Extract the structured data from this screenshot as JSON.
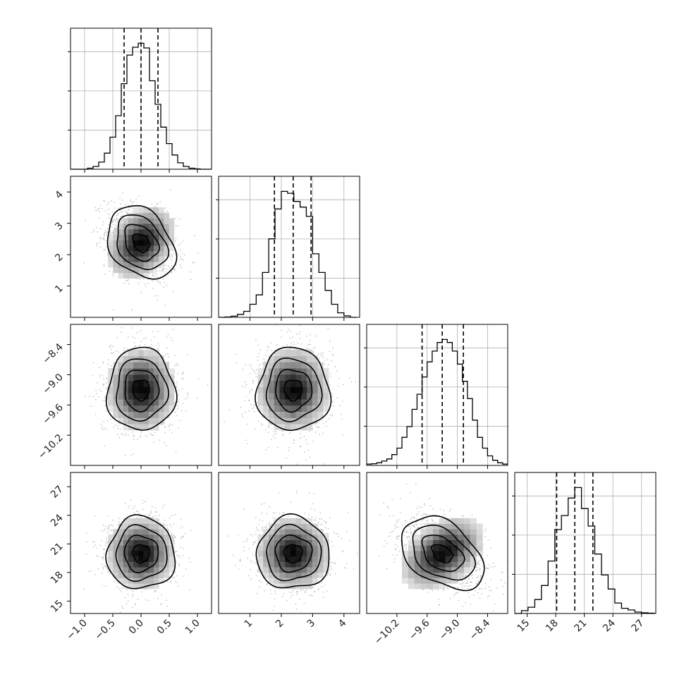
{
  "chart_data": {
    "type": "corner",
    "grid": true,
    "parameters": [
      {
        "key": "p0",
        "range": [
          -1.25,
          1.25
        ],
        "median": 0.0,
        "quantiles": [
          -0.3,
          0.0,
          0.3
        ],
        "sigma": 0.3,
        "ticks": [
          -1.0,
          -0.5,
          0.0,
          0.5,
          1.0
        ],
        "tick_labels": [
          "−1.0",
          "−0.5",
          "0.0",
          "0.5",
          "1.0"
        ]
      },
      {
        "key": "p1",
        "range": [
          0.0,
          4.5
        ],
        "median": 2.38,
        "quantiles": [
          1.78,
          2.38,
          2.95
        ],
        "sigma": 0.58,
        "ticks": [
          1,
          2,
          3,
          4
        ],
        "tick_labels": [
          "1",
          "2",
          "3",
          "4"
        ]
      },
      {
        "key": "p2",
        "range": [
          -10.8,
          -8.0
        ],
        "median": -9.3,
        "quantiles": [
          -9.7,
          -9.3,
          -8.88
        ],
        "sigma": 0.41,
        "ticks": [
          -10.2,
          -9.6,
          -9.0,
          -8.4
        ],
        "tick_labels": [
          "−10.2",
          "−9.6",
          "−9.0",
          "−8.4"
        ]
      },
      {
        "key": "p3",
        "range": [
          13.7,
          28.5
        ],
        "median": 20.0,
        "quantiles": [
          18.1,
          20.0,
          21.9
        ],
        "sigma": 1.9,
        "ticks": [
          15,
          18,
          21,
          24,
          27
        ],
        "tick_labels": [
          "15",
          "18",
          "21",
          "24",
          "27"
        ]
      }
    ],
    "histograms": [
      {
        "param": 0,
        "bins": [
          -1.25,
          -1.15,
          -1.05,
          -0.95,
          -0.85,
          -0.75,
          -0.65,
          -0.55,
          -0.45,
          -0.35,
          -0.25,
          -0.15,
          -0.05,
          0.05,
          0.15,
          0.25,
          0.35,
          0.45,
          0.55,
          0.65,
          0.75,
          0.85,
          0.95,
          1.05,
          1.15,
          1.25
        ],
        "counts": [
          0,
          0,
          0,
          3,
          8,
          20,
          45,
          90,
          150,
          240,
          320,
          342,
          353,
          340,
          248,
          182,
          118,
          72,
          40,
          18,
          8,
          3,
          1,
          0,
          0
        ]
      },
      {
        "param": 1,
        "bins": [
          0.0,
          0.2,
          0.4,
          0.6,
          0.8,
          1.0,
          1.2,
          1.4,
          1.6,
          1.8,
          2.0,
          2.2,
          2.4,
          2.6,
          2.8,
          3.0,
          3.2,
          3.4,
          3.6,
          3.8,
          4.0,
          4.2,
          4.4
        ],
        "counts": [
          0,
          1,
          3,
          8,
          16,
          35,
          60,
          120,
          210,
          290,
          337,
          332,
          310,
          295,
          270,
          170,
          120,
          72,
          35,
          12,
          4,
          0
        ]
      },
      {
        "param": 2,
        "bins": [
          -10.8,
          -10.7,
          -10.6,
          -10.5,
          -10.4,
          -10.3,
          -10.2,
          -10.1,
          -10.0,
          -9.9,
          -9.8,
          -9.7,
          -9.6,
          -9.5,
          -9.4,
          -9.3,
          -9.2,
          -9.1,
          -9.0,
          -8.9,
          -8.8,
          -8.7,
          -8.6,
          -8.5,
          -8.4,
          -8.3,
          -8.2,
          -8.1,
          -8.0
        ],
        "counts": [
          3,
          4,
          6,
          10,
          15,
          25,
          40,
          65,
          90,
          130,
          165,
          205,
          240,
          265,
          285,
          292,
          285,
          265,
          235,
          195,
          155,
          105,
          65,
          40,
          22,
          12,
          6,
          3
        ]
      },
      {
        "param": 3,
        "bins": [
          13.7,
          14.4,
          15.1,
          15.8,
          16.5,
          17.2,
          17.9,
          18.6,
          19.3,
          20.0,
          20.7,
          21.4,
          22.1,
          22.8,
          23.5,
          24.2,
          24.9,
          25.6,
          26.3,
          27.0,
          27.7,
          28.4
        ],
        "counts": [
          0,
          8,
          18,
          40,
          80,
          150,
          240,
          280,
          330,
          360,
          300,
          250,
          170,
          110,
          70,
          30,
          15,
          10,
          4,
          2,
          1
        ]
      }
    ],
    "pairs": [
      {
        "row": 1,
        "col": 0,
        "rho": -0.3
      },
      {
        "row": 2,
        "col": 0,
        "rho": 0.0
      },
      {
        "row": 2,
        "col": 1,
        "rho": 0.0
      },
      {
        "row": 3,
        "col": 0,
        "rho": 0.0
      },
      {
        "row": 3,
        "col": 1,
        "rho": 0.0
      },
      {
        "row": 3,
        "col": 2,
        "rho": -0.4
      }
    ],
    "contour_levels_sigma": [
      0.5,
      1.0,
      1.5,
      2.0
    ],
    "colors": {
      "line": "#000000",
      "grid": "#b0b0b0",
      "points": "#9a9a9a"
    }
  }
}
